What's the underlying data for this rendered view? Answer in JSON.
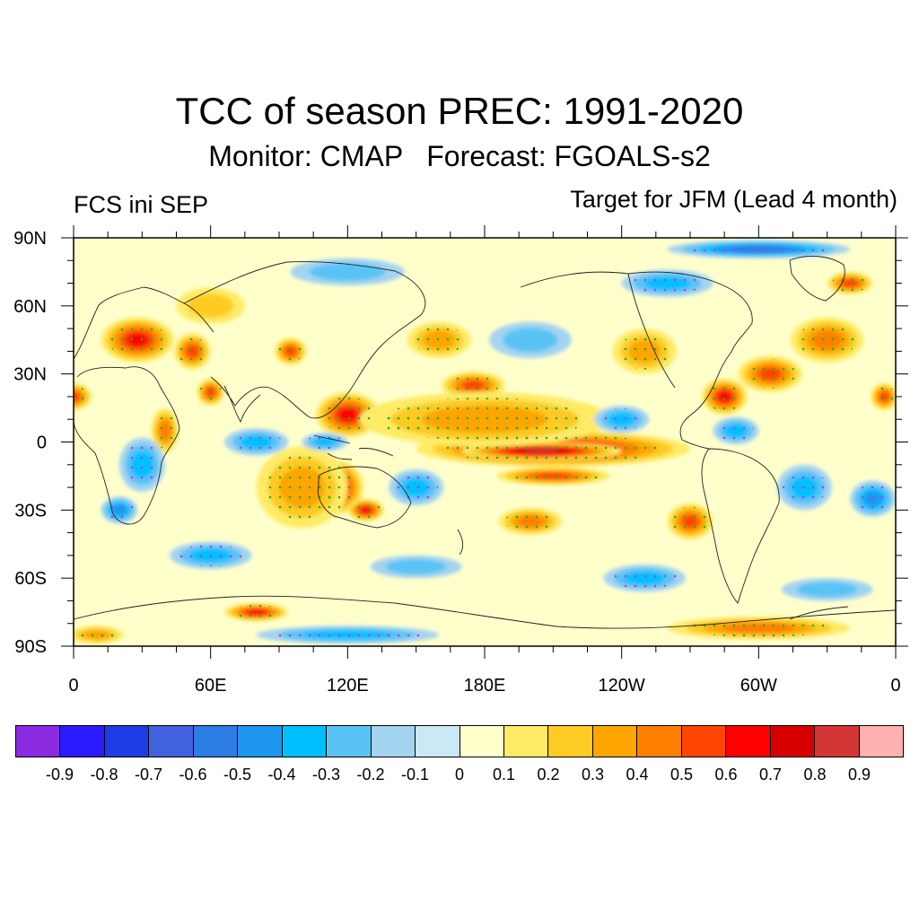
{
  "title": "TCC of season PREC: 1991-2020",
  "subtitle": "Monitor: CMAP   Forecast: FGOALS-s2",
  "left_label": "FCS ini SEP",
  "right_label": "Target for JFM (Lead 4 month)",
  "y_axis_labels": [
    "90N",
    "60N",
    "30N",
    "0",
    "30S",
    "60S",
    "90S"
  ],
  "x_axis_labels": [
    "0",
    "60E",
    "120E",
    "180E",
    "120W",
    "60W",
    "0"
  ],
  "colorbar": {
    "colors": [
      "#8a2be2",
      "#2a1aff",
      "#1e3ce6",
      "#4162dc",
      "#2d7de6",
      "#1e96f0",
      "#00bfff",
      "#5ac3f5",
      "#a3d4f0",
      "#cae8f5",
      "#ffffcc",
      "#ffeb66",
      "#ffcb24",
      "#ffa500",
      "#ff7f00",
      "#ff4500",
      "#ff0000",
      "#d70000",
      "#d43535",
      "#ffb0b0"
    ],
    "labels": [
      "-0.9",
      "-0.8",
      "-0.7",
      "-0.6",
      "-0.5",
      "-0.4",
      "-0.3",
      "-0.2",
      "-0.1",
      "0",
      "0.1",
      "0.2",
      "0.3",
      "0.4",
      "0.5",
      "0.6",
      "0.7",
      "0.8",
      "0.9"
    ]
  },
  "map_blobs": [
    {
      "lon": 28,
      "lat": 45,
      "rx": 16,
      "ry": 10,
      "level": 0.6
    },
    {
      "lon": 52,
      "lat": 40,
      "rx": 8,
      "ry": 8,
      "level": 0.5
    },
    {
      "lon": 95,
      "lat": 40,
      "rx": 7,
      "ry": 6,
      "level": 0.5
    },
    {
      "lon": 120,
      "lat": 12,
      "rx": 14,
      "ry": 10,
      "level": 0.6
    },
    {
      "lon": 148,
      "lat": 8,
      "rx": 18,
      "ry": 6,
      "level": 0.6
    },
    {
      "lon": 175,
      "lat": 25,
      "rx": 14,
      "ry": 6,
      "level": 0.5
    },
    {
      "lon": 210,
      "lat": -3,
      "rx": 60,
      "ry": 8,
      "level": 0.7
    },
    {
      "lon": 205,
      "lat": -4,
      "rx": 35,
      "ry": 4,
      "level": 0.8
    },
    {
      "lon": 180,
      "lat": 10,
      "rx": 55,
      "ry": 12,
      "level": 0.3
    },
    {
      "lon": 115,
      "lat": -20,
      "rx": 12,
      "ry": 12,
      "level": 0.7
    },
    {
      "lon": 128,
      "lat": -30,
      "rx": 8,
      "ry": 5,
      "level": 0.6
    },
    {
      "lon": 100,
      "lat": -20,
      "rx": 20,
      "ry": 18,
      "level": 0.3
    },
    {
      "lon": 285,
      "lat": 20,
      "rx": 10,
      "ry": 8,
      "level": 0.6
    },
    {
      "lon": 305,
      "lat": 30,
      "rx": 14,
      "ry": 8,
      "level": 0.5
    },
    {
      "lon": 330,
      "lat": 45,
      "rx": 16,
      "ry": 10,
      "level": 0.4
    },
    {
      "lon": 270,
      "lat": -35,
      "rx": 10,
      "ry": 8,
      "level": 0.5
    },
    {
      "lon": 200,
      "lat": -35,
      "rx": 14,
      "ry": 6,
      "level": 0.4
    },
    {
      "lon": 80,
      "lat": -75,
      "rx": 14,
      "ry": 4,
      "level": 0.6
    },
    {
      "lon": 300,
      "lat": -82,
      "rx": 40,
      "ry": 5,
      "level": 0.4
    },
    {
      "lon": 0,
      "lat": 20,
      "rx": 8,
      "ry": 6,
      "level": 0.5
    },
    {
      "lon": 355,
      "lat": 20,
      "rx": 6,
      "ry": 6,
      "level": 0.5
    },
    {
      "lon": 60,
      "lat": 22,
      "rx": 6,
      "ry": 6,
      "level": 0.5
    },
    {
      "lon": 340,
      "lat": 70,
      "rx": 10,
      "ry": 5,
      "level": 0.5
    },
    {
      "lon": 40,
      "lat": 5,
      "rx": 6,
      "ry": 10,
      "level": 0.4
    },
    {
      "lon": 160,
      "lat": 45,
      "rx": 14,
      "ry": 8,
      "level": 0.3
    },
    {
      "lon": 250,
      "lat": 40,
      "rx": 14,
      "ry": 10,
      "level": 0.3
    },
    {
      "lon": 30,
      "lat": -10,
      "rx": 10,
      "ry": 12,
      "level": -0.3
    },
    {
      "lon": 20,
      "lat": -30,
      "rx": 8,
      "ry": 6,
      "level": -0.4
    },
    {
      "lon": 80,
      "lat": 0,
      "rx": 14,
      "ry": 6,
      "level": -0.3
    },
    {
      "lon": 110,
      "lat": 0,
      "rx": 10,
      "ry": 4,
      "level": -0.3
    },
    {
      "lon": 150,
      "lat": -20,
      "rx": 12,
      "ry": 8,
      "level": -0.3
    },
    {
      "lon": 200,
      "lat": 45,
      "rx": 18,
      "ry": 8,
      "level": -0.2
    },
    {
      "lon": 240,
      "lat": 10,
      "rx": 12,
      "ry": 6,
      "level": -0.3
    },
    {
      "lon": 290,
      "lat": 5,
      "rx": 10,
      "ry": 6,
      "level": -0.3
    },
    {
      "lon": 320,
      "lat": -20,
      "rx": 12,
      "ry": 10,
      "level": -0.3
    },
    {
      "lon": 350,
      "lat": -25,
      "rx": 10,
      "ry": 8,
      "level": -0.4
    },
    {
      "lon": 260,
      "lat": 70,
      "rx": 20,
      "ry": 6,
      "level": -0.3
    },
    {
      "lon": 300,
      "lat": 85,
      "rx": 40,
      "ry": 4,
      "level": -0.5
    },
    {
      "lon": 60,
      "lat": -50,
      "rx": 18,
      "ry": 6,
      "level": -0.3
    },
    {
      "lon": 150,
      "lat": -55,
      "rx": 20,
      "ry": 5,
      "level": -0.2
    },
    {
      "lon": 250,
      "lat": -60,
      "rx": 18,
      "ry": 6,
      "level": -0.3
    },
    {
      "lon": 330,
      "lat": -65,
      "rx": 20,
      "ry": 5,
      "level": -0.2
    },
    {
      "lon": 120,
      "lat": 75,
      "rx": 25,
      "ry": 6,
      "level": -0.2
    },
    {
      "lon": 210,
      "lat": -15,
      "rx": 25,
      "ry": 4,
      "level": 0.5
    },
    {
      "lon": 60,
      "lat": 60,
      "rx": 15,
      "ry": 8,
      "level": 0.2
    },
    {
      "lon": 120,
      "lat": -85,
      "rx": 40,
      "ry": 4,
      "level": -0.3
    },
    {
      "lon": 10,
      "lat": -85,
      "rx": 12,
      "ry": 4,
      "level": 0.3
    }
  ]
}
